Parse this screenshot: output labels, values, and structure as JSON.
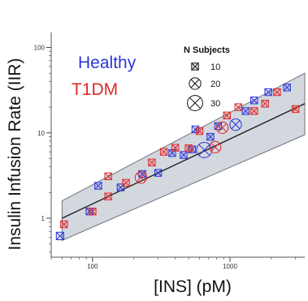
{
  "chart_data": {
    "type": "scatter",
    "xlabel": "[INS] (pM)",
    "ylabel": "Insulin Infusion Rate (IIR)",
    "x_scale": "log",
    "y_scale": "log",
    "xlim": [
      50,
      3500
    ],
    "ylim": [
      0.35,
      150
    ],
    "x_ticks": [
      {
        "value": 100,
        "label": "100"
      },
      {
        "value": 1000,
        "label": "1000"
      }
    ],
    "y_ticks": [
      {
        "value": 1,
        "label": "1"
      },
      {
        "value": 10,
        "label": "10"
      },
      {
        "value": 100,
        "label": "100"
      }
    ],
    "grid": false,
    "legend": {
      "placement": "top-left",
      "entries": [
        {
          "label": "Healthy",
          "color": "#2a38d8"
        },
        {
          "label": "T1DM",
          "color": "#e02828"
        }
      ]
    },
    "size_legend": {
      "title": "N Subjects",
      "placement": "top-center",
      "entries": [
        {
          "label": "10",
          "n": 10
        },
        {
          "label": "20",
          "n": 20
        },
        {
          "label": "30",
          "n": 30
        }
      ]
    },
    "fit_line": {
      "x": [
        60,
        3500
      ],
      "y": [
        1.0,
        22
      ]
    },
    "confidence_band": {
      "x": [
        60,
        3500
      ],
      "lower": [
        0.55,
        9.5
      ],
      "upper": [
        1.6,
        50
      ]
    },
    "series": [
      {
        "name": "Healthy",
        "color": "#2a38d8",
        "points": [
          {
            "x": 58,
            "y": 0.62,
            "n": 12
          },
          {
            "x": 95,
            "y": 1.2,
            "n": 10
          },
          {
            "x": 110,
            "y": 2.4,
            "n": 10
          },
          {
            "x": 160,
            "y": 2.3,
            "n": 10
          },
          {
            "x": 230,
            "y": 3.3,
            "n": 10
          },
          {
            "x": 300,
            "y": 3.4,
            "n": 10
          },
          {
            "x": 380,
            "y": 5.8,
            "n": 10
          },
          {
            "x": 460,
            "y": 5.5,
            "n": 10
          },
          {
            "x": 530,
            "y": 6.4,
            "n": 10
          },
          {
            "x": 560,
            "y": 11,
            "n": 10
          },
          {
            "x": 650,
            "y": 6.3,
            "n": 30
          },
          {
            "x": 720,
            "y": 9,
            "n": 10
          },
          {
            "x": 820,
            "y": 12,
            "n": 10
          },
          {
            "x": 1100,
            "y": 12.5,
            "n": 20
          },
          {
            "x": 1300,
            "y": 18,
            "n": 10
          },
          {
            "x": 1500,
            "y": 24,
            "n": 10
          },
          {
            "x": 1900,
            "y": 30,
            "n": 10
          },
          {
            "x": 2600,
            "y": 34,
            "n": 10
          }
        ]
      },
      {
        "name": "T1DM",
        "color": "#e02828",
        "points": [
          {
            "x": 62,
            "y": 0.85,
            "n": 10
          },
          {
            "x": 100,
            "y": 1.2,
            "n": 10
          },
          {
            "x": 130,
            "y": 1.8,
            "n": 10
          },
          {
            "x": 130,
            "y": 3.1,
            "n": 10
          },
          {
            "x": 175,
            "y": 2.6,
            "n": 10
          },
          {
            "x": 225,
            "y": 3.0,
            "n": 20
          },
          {
            "x": 270,
            "y": 4.5,
            "n": 10
          },
          {
            "x": 330,
            "y": 6.0,
            "n": 10
          },
          {
            "x": 400,
            "y": 6.7,
            "n": 10
          },
          {
            "x": 500,
            "y": 6.6,
            "n": 10
          },
          {
            "x": 600,
            "y": 10.5,
            "n": 10
          },
          {
            "x": 780,
            "y": 6.8,
            "n": 20
          },
          {
            "x": 880,
            "y": 11.5,
            "n": 20
          },
          {
            "x": 950,
            "y": 16,
            "n": 10
          },
          {
            "x": 1150,
            "y": 20,
            "n": 10
          },
          {
            "x": 1500,
            "y": 18,
            "n": 10
          },
          {
            "x": 1800,
            "y": 22,
            "n": 10
          },
          {
            "x": 2200,
            "y": 30,
            "n": 10
          },
          {
            "x": 3000,
            "y": 19,
            "n": 10
          }
        ]
      }
    ]
  }
}
